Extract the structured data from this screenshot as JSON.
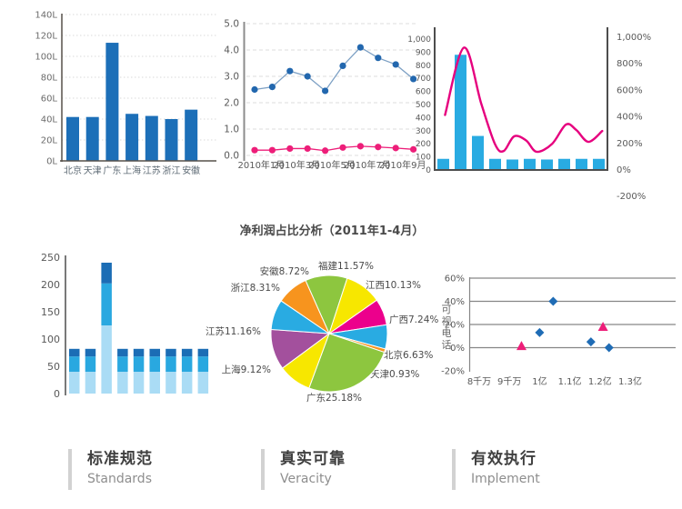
{
  "page": {
    "background": "#ffffff"
  },
  "footer": {
    "items": [
      {
        "title_cn": "标准规范",
        "title_en": "Standards"
      },
      {
        "title_cn": "真实可靠",
        "title_en": "Veracity"
      },
      {
        "title_cn": "有效执行",
        "title_en": "Implement"
      }
    ]
  },
  "chart_data": [
    {
      "type": "bar",
      "name": "regional-bar-chart",
      "categories": [
        "北京",
        "天津",
        "广东",
        "上海",
        "江苏",
        "浙江",
        "安徽"
      ],
      "values": [
        42,
        42,
        113,
        45,
        43,
        40,
        49
      ],
      "y_ticks": [
        "0L",
        "20L",
        "40L",
        "60L",
        "80L",
        "100L",
        "120L",
        "140L"
      ],
      "ylim": [
        0,
        140
      ],
      "grid": "dotted",
      "bar_color": "#1c6fb8",
      "axis_color": "#56504a",
      "grid_color": "#d9d9d9",
      "label_color": "#5d6a74"
    },
    {
      "type": "line",
      "name": "monthly-trend-line-chart",
      "x_labels": [
        "2010年1月",
        "2010年3月",
        "2010年5月",
        "2010年7月",
        "2010年9月"
      ],
      "y_ticks": [
        "0.0",
        "1.0",
        "2.0",
        "3.0",
        "4.0",
        "5.0"
      ],
      "ylim": [
        0,
        5
      ],
      "grid": "dashed",
      "series": [
        {
          "name": "blue-series",
          "marker_color": "#2267ae",
          "line_color": "#7da0c4",
          "values": [
            2.5,
            2.6,
            3.2,
            3.0,
            2.45,
            3.4,
            4.1,
            3.7,
            3.45,
            2.9
          ]
        },
        {
          "name": "pink-series",
          "marker_color": "#ed1e79",
          "line_color": "#ed1e79",
          "values": [
            0.2,
            0.2,
            0.26,
            0.26,
            0.18,
            0.3,
            0.35,
            0.32,
            0.28,
            0.23
          ]
        }
      ],
      "axis_color": "#8c8c8c",
      "grid_color": "#dcdcdc",
      "label_color": "#595959"
    },
    {
      "type": "bar-line",
      "name": "combo-chart",
      "bar_values": [
        85,
        880,
        260,
        85,
        80,
        85,
        80,
        85,
        85,
        85
      ],
      "left_ticks": [
        "0",
        "100",
        "200",
        "300",
        "400",
        "500",
        "600",
        "700",
        "800",
        "900",
        "1,000"
      ],
      "left_max": 1000,
      "right_ticks": [
        "-200%",
        "0%",
        "200%",
        "400%",
        "600%",
        "800%",
        "1,000%"
      ],
      "curve": [
        [
          0.06,
          420
        ],
        [
          0.17,
          935
        ],
        [
          0.27,
          505
        ],
        [
          0.35,
          195
        ],
        [
          0.4,
          145
        ],
        [
          0.46,
          257
        ],
        [
          0.53,
          225
        ],
        [
          0.59,
          139
        ],
        [
          0.68,
          200
        ],
        [
          0.76,
          347
        ],
        [
          0.82,
          305
        ],
        [
          0.89,
          215
        ],
        [
          0.97,
          298
        ]
      ],
      "bar_color": "#29abe2",
      "line_color": "#e6007e",
      "axis_color": "#4d4d4d",
      "label_color": "#595959"
    },
    {
      "type": "stacked-bar",
      "name": "stacked-bar-chart",
      "y_ticks": [
        "0",
        "50",
        "100",
        "150",
        "200",
        "250"
      ],
      "ylim": [
        0,
        250
      ],
      "segment_colors": [
        "#aadcf5",
        "#29a8e0",
        "#1b6db5"
      ],
      "bars": [
        [
          40,
          28,
          14
        ],
        [
          40,
          28,
          14
        ],
        [
          125,
          77,
          38
        ],
        [
          40,
          28,
          14
        ],
        [
          40,
          28,
          14
        ],
        [
          40,
          28,
          14
        ],
        [
          40,
          28,
          14
        ],
        [
          40,
          28,
          14
        ],
        [
          40,
          28,
          14
        ]
      ],
      "axis_color": "#4d4d4d",
      "label_color": "#595959"
    },
    {
      "type": "pie",
      "name": "net-profit-pie-chart",
      "title": "净利润占比分析（2011年1-4月）",
      "start_angle": -24,
      "label_color": "#4a4a4a",
      "slices": [
        {
          "name": "福建",
          "pct": 11.57,
          "color": "#8dc63f",
          "label": "福建11.57%",
          "lx": 110,
          "ly": 26,
          "anchor": "start"
        },
        {
          "name": "江西",
          "pct": 10.13,
          "color": "#f7e700",
          "label": "江西10.13%",
          "lx": 162,
          "ly": 47,
          "anchor": "start"
        },
        {
          "name": "广西",
          "pct": 7.24,
          "color": "#ec008c",
          "label": "广西7.24%",
          "lx": 188,
          "ly": 85,
          "anchor": "start"
        },
        {
          "name": "北京",
          "pct": 6.63,
          "color": "#29abe2",
          "label": "北京6.63%",
          "lx": 182,
          "ly": 124,
          "anchor": "start"
        },
        {
          "name": "天津",
          "pct": 0.93,
          "color": "#f7941e",
          "label": "天津0.93%",
          "lx": 167,
          "ly": 145,
          "anchor": "start"
        },
        {
          "name": "广东",
          "pct": 25.18,
          "color": "#8dc63f",
          "label": "广东25.18%",
          "lx": 97,
          "ly": 171,
          "anchor": "start"
        },
        {
          "name": "上海",
          "pct": 9.12,
          "color": "#f7e700",
          "label": "上海9.12%",
          "lx": 58,
          "ly": 140,
          "anchor": "end"
        },
        {
          "name": "江苏",
          "pct": 11.16,
          "color": "#a3509d",
          "label": "江苏11.16%",
          "lx": 47,
          "ly": 98,
          "anchor": "end"
        },
        {
          "name": "浙江",
          "pct": 8.31,
          "color": "#29abe2",
          "label": "浙江8.31%",
          "lx": 68,
          "ly": 50,
          "anchor": "end"
        },
        {
          "name": "安徽",
          "pct": 8.72,
          "color": "#f7941e",
          "label": "安徽8.72%",
          "lx": 100,
          "ly": 32,
          "anchor": "end"
        }
      ]
    },
    {
      "type": "scatter",
      "name": "videophone-scatter-chart",
      "ylabel": "可视电话",
      "ylabel_chars": [
        "可",
        "视",
        "电",
        "话"
      ],
      "y_ticks": [
        "60%",
        "40%",
        "20%",
        "0%",
        "-20%"
      ],
      "x_ticks": [
        "8千万",
        "9千万",
        "1亿",
        "1.1亿",
        "1.2亿",
        "1.3亿"
      ],
      "x_range": [
        0.8,
        1.3
      ],
      "y_range": [
        -20,
        60
      ],
      "series": [
        {
          "name": "diamond-series",
          "marker": "diamond",
          "color": "#1f6cb5",
          "points": [
            [
              1.0,
              13
            ],
            [
              1.045,
              40
            ],
            [
              1.17,
              5
            ],
            [
              1.23,
              0
            ]
          ]
        },
        {
          "name": "triangle-series",
          "marker": "triangle",
          "color": "#ed1e79",
          "points": [
            [
              0.94,
              1.5
            ],
            [
              1.21,
              18
            ]
          ]
        }
      ],
      "grid_color": "#868686",
      "label_color": "#595959"
    }
  ]
}
